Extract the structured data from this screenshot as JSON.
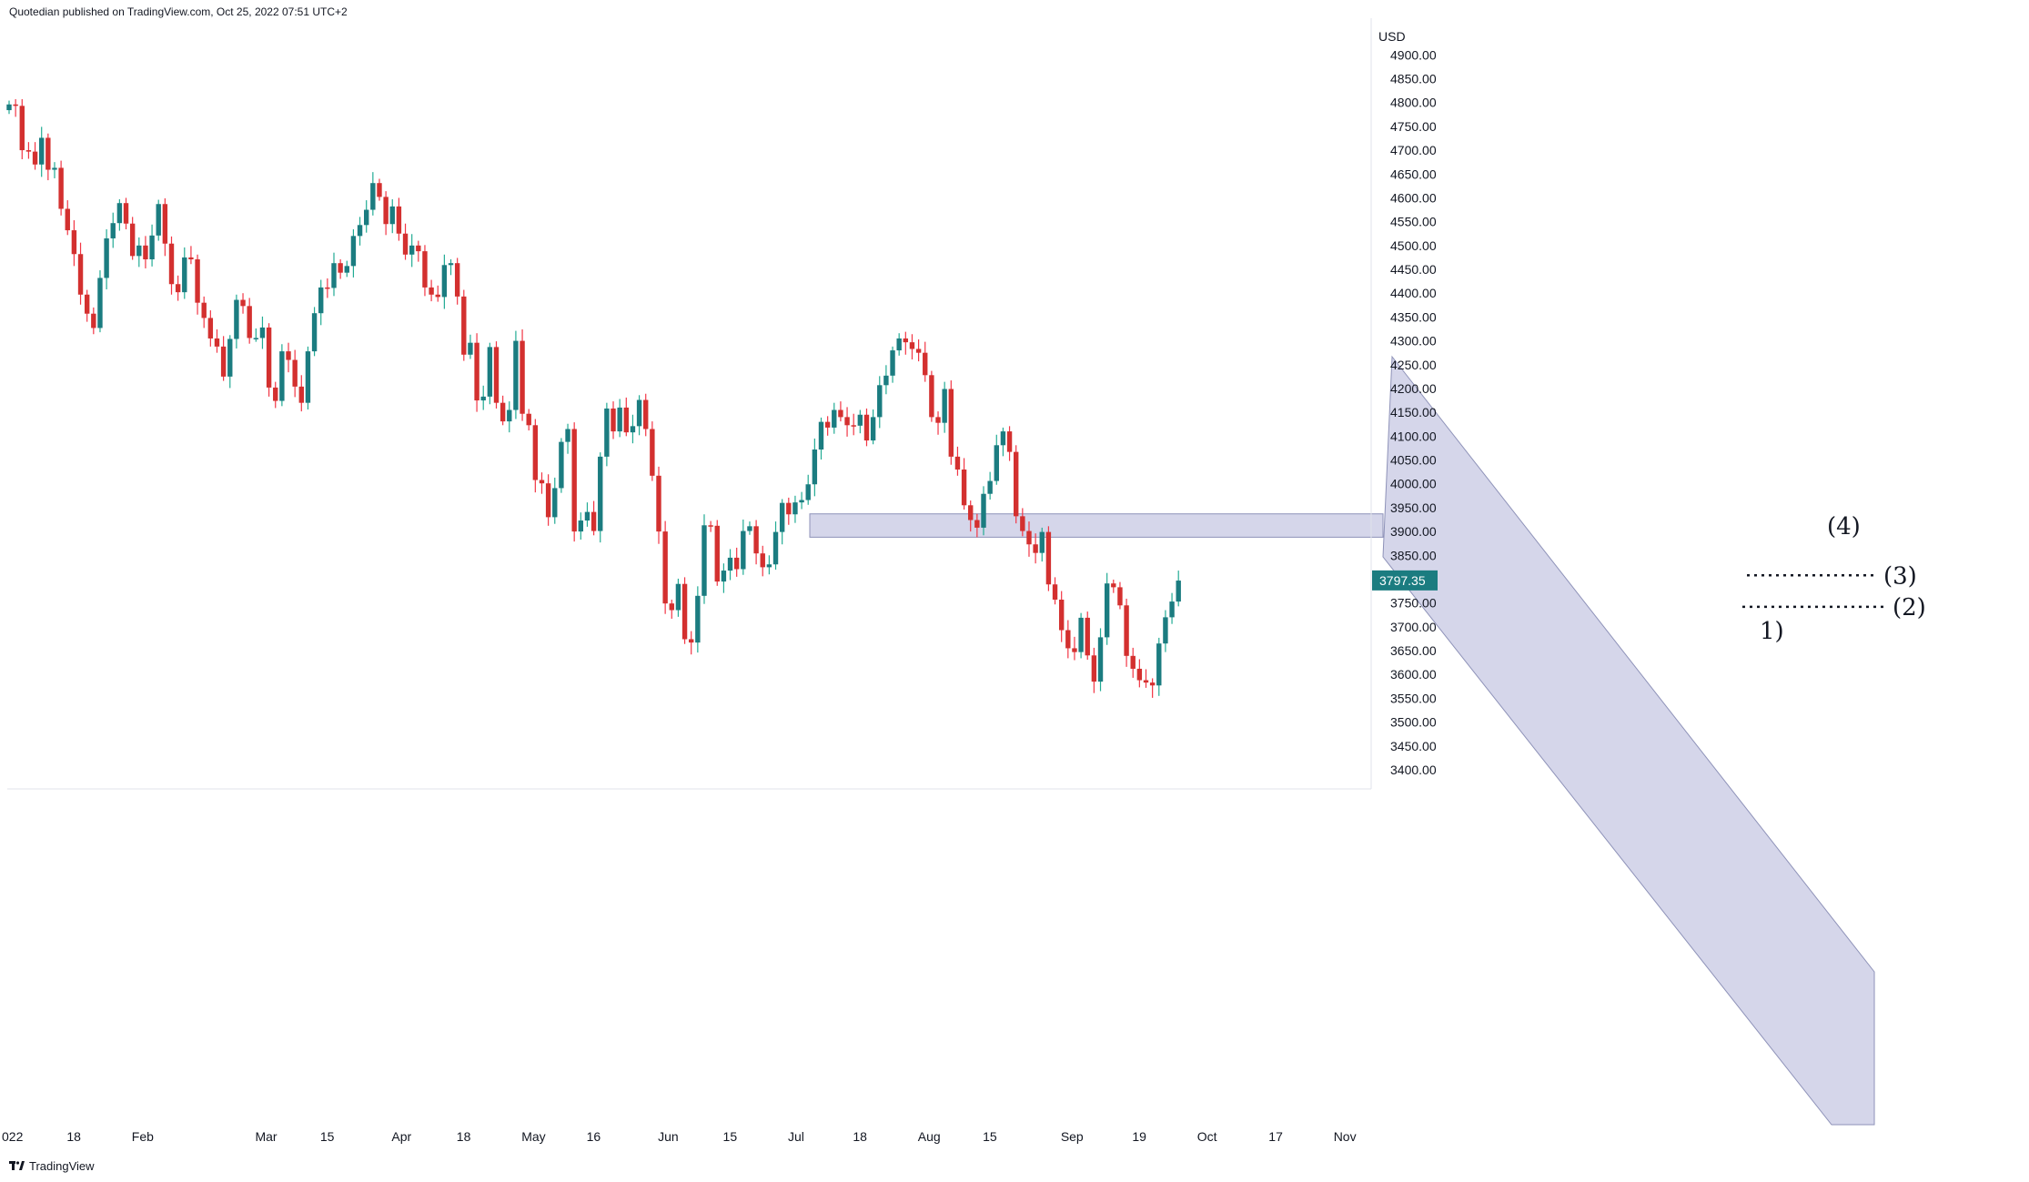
{
  "header": "Quotedian published on TradingView.com, Oct 25, 2022 07:51 UTC+2",
  "branding": "TradingView",
  "colors": {
    "up": "#22ab94",
    "up_body": "#1b7c80",
    "down": "#f23645",
    "down_body": "#d3302f",
    "band": "#b2b5d9",
    "price_label_bg": "#1b7c80"
  },
  "chart_data": {
    "type": "candlestick",
    "currency": "USD",
    "last_price": "3797.35",
    "ylim": [
      3300,
      5000
    ],
    "y_ticks": [
      3400,
      3450,
      3500,
      3550,
      3600,
      3650,
      3700,
      3750,
      3800,
      3850,
      3900,
      3950,
      4000,
      4050,
      4100,
      4150,
      4200,
      4250,
      4300,
      4350,
      4400,
      4450,
      4500,
      4550,
      4600,
      4650,
      4700,
      4750,
      4800,
      4850,
      4900
    ],
    "x_ticks": [
      {
        "label": "022",
        "i": 0
      },
      {
        "label": "18",
        "i": 10
      },
      {
        "label": "Feb",
        "i": 20
      },
      {
        "label": "Mar",
        "i": 39
      },
      {
        "label": "15",
        "i": 49
      },
      {
        "label": "Apr",
        "i": 60
      },
      {
        "label": "18",
        "i": 70
      },
      {
        "label": "May",
        "i": 80
      },
      {
        "label": "16",
        "i": 90
      },
      {
        "label": "Jun",
        "i": 101
      },
      {
        "label": "15",
        "i": 111
      },
      {
        "label": "Jul",
        "i": 121
      },
      {
        "label": "18",
        "i": 131
      },
      {
        "label": "Aug",
        "i": 141
      },
      {
        "label": "15",
        "i": 151
      },
      {
        "label": "Sep",
        "i": 163
      },
      {
        "label": "19",
        "i": 174
      },
      {
        "label": "Oct",
        "i": 184
      },
      {
        "label": "17",
        "i": 195
      },
      {
        "label": "Nov",
        "i": 205
      }
    ],
    "closes": [
      4796,
      4793,
      4700,
      4697,
      4670,
      4726,
      4659,
      4663,
      4577,
      4532,
      4482,
      4397,
      4357,
      4327,
      4432,
      4515,
      4547,
      4589,
      4546,
      4478,
      4500,
      4471,
      4521,
      4587,
      4504,
      4419,
      4402,
      4475,
      4471,
      4380,
      4348,
      4305,
      4288,
      4225,
      4304,
      4386,
      4373,
      4306,
      4306,
      4328,
      4202,
      4174,
      4278,
      4260,
      4204,
      4170,
      4278,
      4358,
      4412,
      4411,
      4463,
      4443,
      4457,
      4520,
      4543,
      4575,
      4631,
      4602,
      4545,
      4582,
      4525,
      4481,
      4500,
      4488,
      4412,
      4397,
      4392,
      4459,
      4463,
      4393,
      4271,
      4296,
      4175,
      4183,
      4287,
      4170,
      4131,
      4155,
      4300,
      4147,
      4123,
      4008,
      4001,
      3930,
      3991,
      4088,
      4115,
      3900,
      3923,
      3941,
      3901,
      4057,
      4158,
      4110,
      4160,
      4108,
      4121,
      4176,
      4115,
      4017,
      3900,
      3749,
      3735,
      3790,
      3674,
      3667,
      3765,
      3913,
      3912,
      3795,
      3818,
      3845,
      3821,
      3901,
      3911,
      3854,
      3825,
      3831,
      3899,
      3960,
      3936,
      3961,
      3966,
      3999,
      4072,
      4130,
      4118,
      4155,
      4140,
      4123,
      4122,
      4145,
      4091,
      4140,
      4207,
      4227,
      4280,
      4305,
      4297,
      4283,
      4275,
      4228,
      4140,
      4128,
      4199,
      4057,
      4030,
      3955,
      3924,
      3908,
      3979,
      4006,
      4081,
      4110,
      4067,
      3932,
      3901,
      3873,
      3855,
      3899,
      3789,
      3757,
      3693,
      3655,
      3647,
      3719,
      3640,
      3585,
      3678,
      3791,
      3783,
      3745,
      3639,
      3612,
      3588,
      3583,
      3577,
      3665,
      3720,
      3753,
      3797
    ]
  },
  "annotations": {
    "band_label": "(4)",
    "level_3": "(3)",
    "level_2": "(2)",
    "label_1": "1)",
    "level_4_range": [
      3888,
      3937
    ],
    "level_3_price": 3808,
    "level_2_price": 3742
  }
}
